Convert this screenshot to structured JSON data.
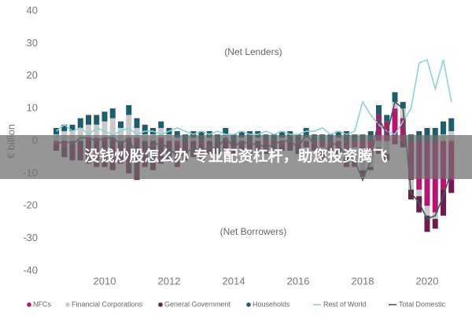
{
  "banner": {
    "text": "没钱炒股怎么办 专业配资杠杆，助您投资腾飞"
  },
  "chart_data": {
    "type": "bar",
    "y_label": "€ billion",
    "annotations": [
      "(Net Lenders)",
      "(Net Borrowers)"
    ],
    "x": [
      2008.5,
      2008.75,
      2009,
      2009.25,
      2009.5,
      2009.75,
      2010,
      2010.25,
      2010.5,
      2010.75,
      2011,
      2011.25,
      2011.5,
      2011.75,
      2012,
      2012.25,
      2012.5,
      2012.75,
      2013,
      2013.25,
      2013.5,
      2013.75,
      2014,
      2014.25,
      2014.5,
      2014.75,
      2015,
      2015.25,
      2015.5,
      2015.75,
      2016,
      2016.25,
      2016.5,
      2016.75,
      2017,
      2017.25,
      2017.5,
      2017.75,
      2018,
      2018.25,
      2018.5,
      2018.75,
      2019,
      2019.25,
      2019.5,
      2019.75,
      2020,
      2020.25,
      2020.5,
      2020.75
    ],
    "xlim": [
      2008,
      2021
    ],
    "xticks": [
      2010,
      2012,
      2014,
      2016,
      2018,
      2020
    ],
    "ylim": [
      -40,
      40
    ],
    "yticks": [
      -40,
      -30,
      -20,
      -10,
      0,
      10,
      20,
      30,
      40
    ],
    "stacked": true,
    "series": [
      {
        "name": "NFCs",
        "color": "#b3176f",
        "kind": "bar",
        "values": [
          -1,
          -2,
          -1,
          0,
          1,
          1,
          1,
          1,
          0,
          1,
          1,
          0,
          0,
          1,
          0,
          -1,
          0,
          0,
          -1,
          0,
          0,
          1,
          0,
          0,
          -1,
          0,
          -1,
          0,
          -1,
          0,
          -1,
          0,
          -1,
          -2,
          -1,
          -2,
          -3,
          -2,
          -3,
          -5,
          8,
          6,
          10,
          7,
          -12,
          -15,
          -20,
          -22,
          -15,
          -12
        ]
      },
      {
        "name": "Financial Corporations",
        "color": "#c9c9c9",
        "kind": "bar",
        "values": [
          2,
          3,
          3,
          4,
          4,
          4,
          5,
          6,
          4,
          7,
          3,
          2,
          2,
          3,
          2,
          1,
          0,
          1,
          0,
          1,
          0,
          1,
          0,
          1,
          0,
          1,
          0,
          0,
          1,
          0,
          0,
          1,
          0,
          -1,
          0,
          1,
          -2,
          -4,
          -6,
          -3,
          -2,
          -4,
          2,
          3,
          -3,
          -2,
          -3,
          -2,
          2,
          3
        ]
      },
      {
        "name": "General Government",
        "color": "#6b1d4f",
        "kind": "bar",
        "values": [
          -2,
          -3,
          -5,
          -6,
          -7,
          -8,
          -8,
          -9,
          -7,
          -10,
          -12,
          -8,
          -9,
          -7,
          -6,
          -7,
          -6,
          -5,
          -5,
          -4,
          -4,
          -3,
          -4,
          -3,
          -3,
          -4,
          -3,
          -3,
          -2,
          -3,
          -3,
          -2,
          -2,
          -3,
          -2,
          -2,
          -3,
          -2,
          -2,
          -1,
          -2,
          -2,
          -1,
          -2,
          -3,
          -5,
          -5,
          -3,
          -8,
          -4
        ]
      },
      {
        "name": "Households",
        "color": "#1f5d6a",
        "kind": "bar",
        "values": [
          2,
          2,
          2,
          3,
          3,
          3,
          3,
          3,
          2,
          3,
          3,
          3,
          2,
          2,
          2,
          2,
          2,
          2,
          3,
          2,
          2,
          2,
          2,
          2,
          3,
          2,
          2,
          2,
          2,
          3,
          2,
          3,
          2,
          2,
          2,
          2,
          3,
          2,
          2,
          3,
          3,
          2,
          3,
          2,
          2,
          3,
          4,
          4,
          4,
          4
        ]
      },
      {
        "name": "Rest of World",
        "color": "#8ad3d6",
        "kind": "line",
        "values": [
          3,
          5,
          3,
          4,
          2,
          4,
          3,
          2,
          3,
          4,
          2,
          3,
          3,
          2,
          3,
          4,
          3,
          2,
          3,
          2,
          3,
          2,
          2,
          3,
          2,
          2,
          3,
          2,
          3,
          2,
          2,
          3,
          3,
          4,
          2,
          3,
          2,
          3,
          12,
          8,
          5,
          3,
          2,
          6,
          10,
          24,
          25,
          16,
          25,
          12
        ]
      },
      {
        "name": "Total Domestic",
        "color": "#3e5b5d",
        "kind": "line",
        "values": [
          -1,
          0,
          -1,
          1,
          1,
          0,
          1,
          1,
          -1,
          1,
          -5,
          -3,
          -1,
          -1,
          -2,
          -5,
          -4,
          -2,
          -3,
          -2,
          -2,
          1,
          -2,
          0,
          -1,
          -1,
          -2,
          -1,
          0,
          0,
          -2,
          2,
          -1,
          -4,
          -1,
          -1,
          -5,
          -6,
          -12,
          -6,
          7,
          2,
          12,
          10,
          -16,
          -19,
          -24,
          -23,
          -17,
          -9
        ]
      }
    ]
  }
}
